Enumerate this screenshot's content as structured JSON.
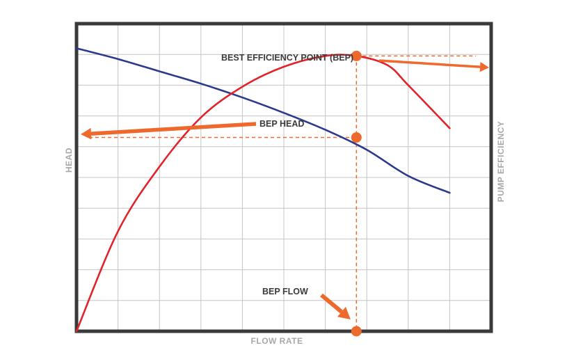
{
  "chart_data": {
    "type": "line",
    "title": "",
    "xlabel": "FLOW RATE",
    "ylabel": "HEAD",
    "y2label": "PUMP EFFICIENCY",
    "xlim": [
      0,
      10
    ],
    "ylim": [
      0,
      10
    ],
    "grid": true,
    "series": [
      {
        "color": "#2b3a8c",
        "x": [
          0,
          1,
          2,
          3,
          4,
          5,
          6,
          7,
          8,
          9
        ],
        "y": [
          9.2,
          8.85,
          8.45,
          8.05,
          7.6,
          7.1,
          6.55,
          5.9,
          5.05,
          4.5
        ]
      },
      {
        "color": "#e2232a",
        "x": [
          0,
          1,
          2,
          3,
          4,
          5,
          6,
          6.75,
          7.5,
          8,
          9
        ],
        "y": [
          0,
          3.25,
          5.35,
          6.95,
          7.95,
          8.6,
          8.95,
          8.95,
          8.65,
          8.0,
          6.6
        ]
      }
    ],
    "annotations": {
      "bep_point": "BEST EFFICIENCY POINT (BEP)",
      "bep_head": "BEP HEAD",
      "bep_flow": "BEP FLOW"
    },
    "bep": {
      "x": 6.75,
      "efficiency_y": 8.95,
      "head_y": 6.3,
      "flow_y": 0
    }
  },
  "colors": {
    "frame": "#3a3a3a",
    "grid": "#c4c4c4",
    "accent": "#ed6a2c",
    "arrow": "#ee7a3c"
  }
}
